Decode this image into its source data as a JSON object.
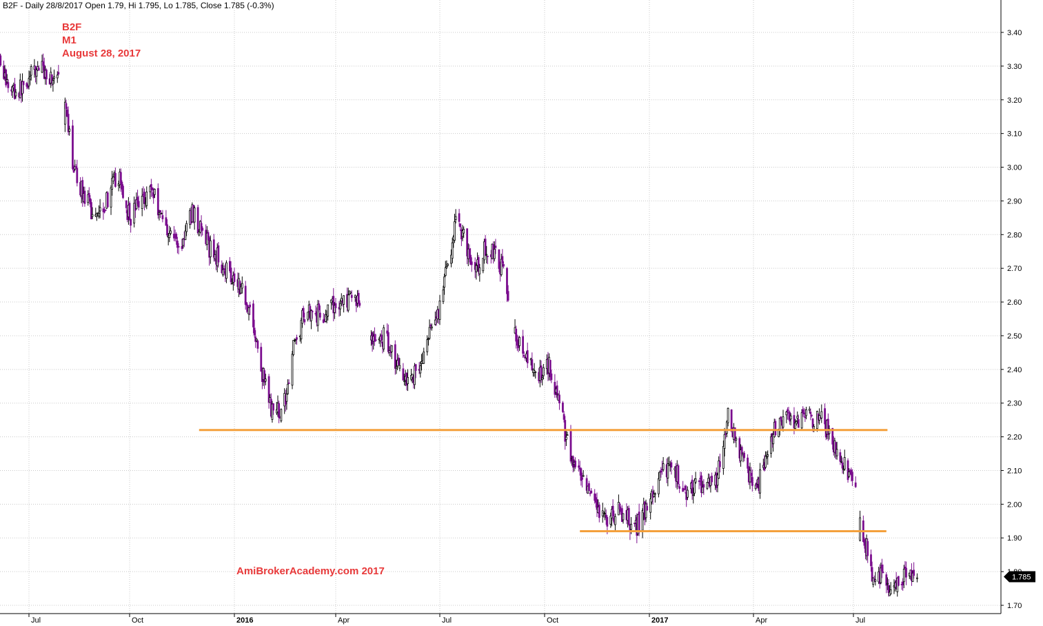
{
  "header": {
    "summary": "B2F - Daily 28/8/2017 Open 1.79, Hi 1.795, Lo 1.785, Close 1.785 (-0.3%)"
  },
  "annotations": {
    "ticker": "B2F",
    "tag": "M1",
    "date": "August 28, 2017",
    "watermark": "AmiBrokerAcademy.com  2017"
  },
  "last_price_label": "1.785",
  "colors": {
    "bull_wick": "#000000",
    "bear_body": "#7b0d8e",
    "support_line": "#f4a03c",
    "grid": "#c8c8c8",
    "annotation_text": "#e8393a",
    "last_price_bg": "#000000"
  },
  "chart_data": {
    "type": "candlestick",
    "title": "B2F - Daily",
    "ylim": [
      1.67,
      3.49
    ],
    "y_ticks": [
      "3.40",
      "3.30",
      "3.20",
      "3.10",
      "3.00",
      "2.90",
      "2.80",
      "2.70",
      "2.60",
      "2.50",
      "2.40",
      "2.30",
      "2.20",
      "2.10",
      "2.00",
      "1.90",
      "1.80",
      "1.70"
    ],
    "x_ticks": [
      {
        "label": "Jul",
        "bold": false
      },
      {
        "label": "Oct",
        "bold": false
      },
      {
        "label": "2016",
        "bold": true
      },
      {
        "label": "Apr",
        "bold": false
      },
      {
        "label": "Jul",
        "bold": false
      },
      {
        "label": "Oct",
        "bold": false
      },
      {
        "label": "2017",
        "bold": true
      },
      {
        "label": "Apr",
        "bold": false
      },
      {
        "label": "Jul",
        "bold": false
      }
    ],
    "x_range": [
      "2015-06-01",
      "2017-09-25"
    ],
    "x_tick_dates": [
      "2015-07-01",
      "2015-10-01",
      "2016-01-01",
      "2016-04-01",
      "2016-07-01",
      "2016-10-01",
      "2017-01-01",
      "2017-04-01",
      "2017-07-01"
    ],
    "grid": true,
    "horizontal_lines": [
      {
        "y": 2.22,
        "from": "2015-12-01",
        "to": "2017-08-01"
      },
      {
        "y": 1.92,
        "from": "2016-11-01",
        "to": "2017-07-31"
      }
    ],
    "last_close": 1.785,
    "price_path": [
      [
        "2015-06-01",
        3.38
      ],
      [
        "2015-06-10",
        3.25
      ],
      [
        "2015-06-20",
        3.22
      ],
      [
        "2015-07-01",
        3.26
      ],
      [
        "2015-07-10",
        3.3
      ],
      [
        "2015-07-20",
        3.27
      ],
      [
        "2015-07-28",
        3.26
      ],
      [
        "2015-08-03",
        3.17
      ],
      [
        "2015-08-12",
        2.98
      ],
      [
        "2015-08-20",
        2.92
      ],
      [
        "2015-08-28",
        2.86
      ],
      [
        "2015-09-10",
        2.9
      ],
      [
        "2015-09-20",
        2.98
      ],
      [
        "2015-10-01",
        2.85
      ],
      [
        "2015-10-10",
        2.9
      ],
      [
        "2015-10-20",
        2.94
      ],
      [
        "2015-11-01",
        2.83
      ],
      [
        "2015-11-15",
        2.76
      ],
      [
        "2015-11-25",
        2.87
      ],
      [
        "2015-12-10",
        2.76
      ],
      [
        "2015-12-25",
        2.7
      ],
      [
        "2016-01-05",
        2.66
      ],
      [
        "2016-01-15",
        2.58
      ],
      [
        "2016-01-25",
        2.4
      ],
      [
        "2016-02-05",
        2.26
      ],
      [
        "2016-02-15",
        2.3
      ],
      [
        "2016-02-22",
        2.45
      ],
      [
        "2016-03-05",
        2.58
      ],
      [
        "2016-03-20",
        2.56
      ],
      [
        "2016-04-05",
        2.6
      ],
      [
        "2016-04-20",
        2.61
      ],
      [
        "2016-05-05",
        2.48
      ],
      [
        "2016-05-15",
        2.5
      ],
      [
        "2016-05-25",
        2.41
      ],
      [
        "2016-06-05",
        2.37
      ],
      [
        "2016-06-15",
        2.42
      ],
      [
        "2016-06-25",
        2.53
      ],
      [
        "2016-07-01",
        2.59
      ],
      [
        "2016-07-08",
        2.71
      ],
      [
        "2016-07-15",
        2.84
      ],
      [
        "2016-07-22",
        2.8
      ],
      [
        "2016-08-01",
        2.68
      ],
      [
        "2016-08-10",
        2.76
      ],
      [
        "2016-08-20",
        2.74
      ],
      [
        "2016-08-28",
        2.66
      ],
      [
        "2016-09-05",
        2.52
      ],
      [
        "2016-09-15",
        2.42
      ],
      [
        "2016-09-25",
        2.38
      ],
      [
        "2016-10-05",
        2.42
      ],
      [
        "2016-10-15",
        2.28
      ],
      [
        "2016-10-25",
        2.12
      ],
      [
        "2016-11-05",
        2.05
      ],
      [
        "2016-11-15",
        1.98
      ],
      [
        "2016-11-25",
        1.95
      ],
      [
        "2016-12-05",
        1.98
      ],
      [
        "2016-12-20",
        1.93
      ],
      [
        "2017-01-01",
        2.0
      ],
      [
        "2017-01-10",
        2.08
      ],
      [
        "2017-01-20",
        2.12
      ],
      [
        "2017-02-01",
        2.04
      ],
      [
        "2017-02-15",
        2.06
      ],
      [
        "2017-03-01",
        2.08
      ],
      [
        "2017-03-10",
        2.26
      ],
      [
        "2017-03-20",
        2.14
      ],
      [
        "2017-04-05",
        2.05
      ],
      [
        "2017-04-20",
        2.22
      ],
      [
        "2017-05-01",
        2.26
      ],
      [
        "2017-05-15",
        2.25
      ],
      [
        "2017-06-01",
        2.26
      ],
      [
        "2017-06-10",
        2.2
      ],
      [
        "2017-06-20",
        2.14
      ],
      [
        "2017-07-01",
        2.06
      ],
      [
        "2017-07-08",
        1.94
      ],
      [
        "2017-07-18",
        1.8
      ],
      [
        "2017-07-28",
        1.79
      ],
      [
        "2017-08-08",
        1.74
      ],
      [
        "2017-08-18",
        1.8
      ],
      [
        "2017-08-28",
        1.785
      ]
    ],
    "gaps": [
      [
        "2015-07-29",
        "2015-08-02"
      ],
      [
        "2016-04-25",
        "2016-05-01"
      ],
      [
        "2016-08-31",
        "2016-09-02"
      ],
      [
        "2017-07-04",
        "2017-07-06"
      ]
    ]
  }
}
